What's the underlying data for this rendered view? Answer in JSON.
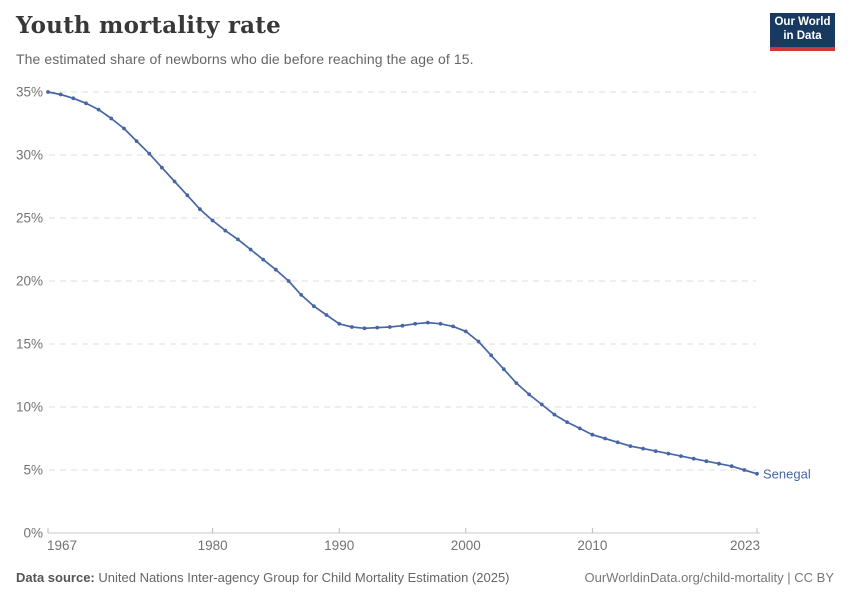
{
  "header": {
    "title": "Youth mortality rate",
    "subtitle": "The estimated share of newborns who die before reaching the age of 15.",
    "logo": {
      "line1": "Our World",
      "line2": "in Data"
    }
  },
  "chart_data": {
    "type": "line",
    "title": "Youth mortality rate",
    "xlabel": "",
    "ylabel": "",
    "xlim": [
      1967,
      2023
    ],
    "ylim": [
      0,
      35
    ],
    "grid": "horizontal-dashed",
    "legend_position": "end-of-line-label",
    "y_ticks": [
      {
        "value": 0,
        "label": "0%"
      },
      {
        "value": 5,
        "label": "5%"
      },
      {
        "value": 10,
        "label": "10%"
      },
      {
        "value": 15,
        "label": "15%"
      },
      {
        "value": 20,
        "label": "20%"
      },
      {
        "value": 25,
        "label": "25%"
      },
      {
        "value": 30,
        "label": "30%"
      },
      {
        "value": 35,
        "label": "35%"
      }
    ],
    "x_ticks": [
      {
        "year": 1967,
        "label": "1967"
      },
      {
        "year": 1980,
        "label": "1980"
      },
      {
        "year": 1990,
        "label": "1990"
      },
      {
        "year": 2000,
        "label": "2000"
      },
      {
        "year": 2010,
        "label": "2010"
      },
      {
        "year": 2023,
        "label": "2023"
      }
    ],
    "series": [
      {
        "name": "Senegal",
        "color": "#4666A4",
        "x": [
          1967,
          1968,
          1969,
          1970,
          1971,
          1972,
          1973,
          1974,
          1975,
          1976,
          1977,
          1978,
          1979,
          1980,
          1981,
          1982,
          1983,
          1984,
          1985,
          1986,
          1987,
          1988,
          1989,
          1990,
          1991,
          1992,
          1993,
          1994,
          1995,
          1996,
          1997,
          1998,
          1999,
          2000,
          2001,
          2002,
          2003,
          2004,
          2005,
          2006,
          2007,
          2008,
          2009,
          2010,
          2011,
          2012,
          2013,
          2014,
          2015,
          2016,
          2017,
          2018,
          2019,
          2020,
          2021,
          2022,
          2023
        ],
        "values": [
          35.0,
          34.8,
          34.5,
          34.1,
          33.6,
          32.9,
          32.1,
          31.1,
          30.1,
          29.0,
          27.9,
          26.8,
          25.7,
          24.8,
          24.0,
          23.3,
          22.5,
          21.7,
          20.9,
          20.0,
          18.9,
          18.0,
          17.3,
          16.6,
          16.35,
          16.25,
          16.3,
          16.35,
          16.45,
          16.6,
          16.7,
          16.6,
          16.4,
          16.0,
          15.2,
          14.1,
          13.0,
          11.9,
          11.0,
          10.2,
          9.4,
          8.8,
          8.3,
          7.8,
          7.5,
          7.2,
          6.9,
          6.7,
          6.5,
          6.3,
          6.1,
          5.9,
          5.7,
          5.5,
          5.3,
          5.0,
          4.7
        ]
      }
    ]
  },
  "footer": {
    "source_label": "Data source:",
    "source_text": "United Nations Inter-agency Group for Child Mortality Estimation (2025)",
    "right_text": "OurWorldinData.org/child-mortality | CC BY"
  },
  "colors": {
    "line": "#4666A4",
    "grid": "#dcdcdc",
    "axis": "#c9c9c9",
    "tick": "#bcbcbc",
    "tick_label": "#737373",
    "logo_bg": "#183A60",
    "logo_bar": "#CC3B33"
  }
}
